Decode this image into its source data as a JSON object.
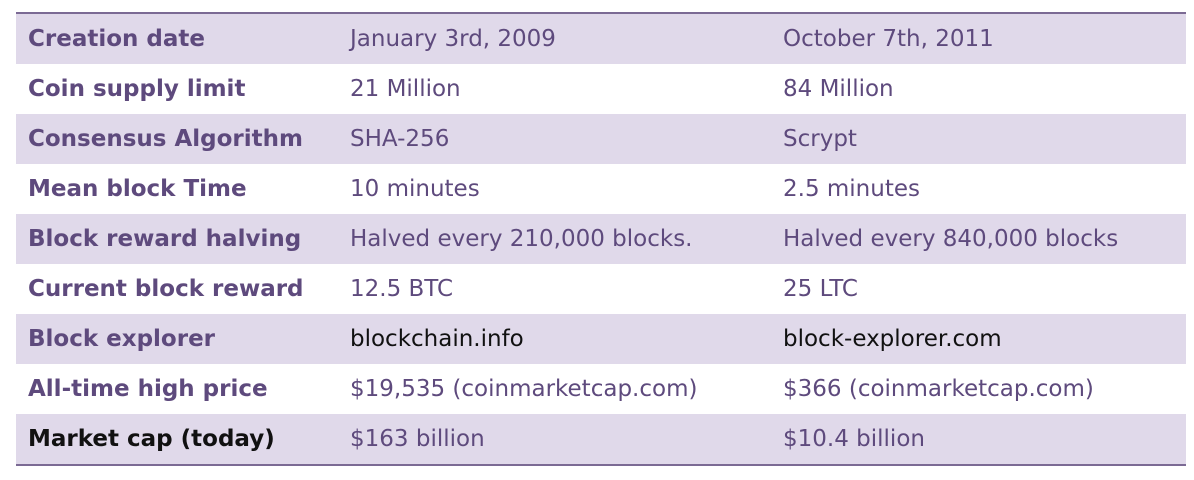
{
  "rows": [
    {
      "label": "Creation date",
      "bitcoin": "January 3rd, 2009",
      "litecoin": "October 7th, 2011"
    },
    {
      "label": "Coin supply limit",
      "bitcoin": "21 Million",
      "litecoin": "84 Million"
    },
    {
      "label": "Consensus Algorithm",
      "bitcoin": "SHA-256",
      "litecoin": "Scrypt"
    },
    {
      "label": "Mean block Time",
      "bitcoin": "10 minutes",
      "litecoin": "2.5 minutes"
    },
    {
      "label": "Block reward halving",
      "bitcoin": "Halved every 210,000 blocks.",
      "litecoin": "Halved every 840,000 blocks"
    },
    {
      "label": "Current block reward",
      "bitcoin": "12.5 BTC",
      "litecoin": "25 LTC"
    },
    {
      "label": "Block explorer",
      "bitcoin": "blockchain.info",
      "litecoin": "block-explorer.com"
    },
    {
      "label": "All-time high price",
      "bitcoin": "$19,535 (coinmarketcap.com)",
      "litecoin": "$366 (coinmarketcap.com)"
    },
    {
      "label": "Market cap (today)",
      "bitcoin": "$163 billion",
      "litecoin": "$10.4 billion"
    }
  ],
  "colors": {
    "text_purple": "#5e4a7d",
    "text_dark": "#111111",
    "row_shade": "#e0d9ea",
    "rule": "#7b6a94"
  }
}
